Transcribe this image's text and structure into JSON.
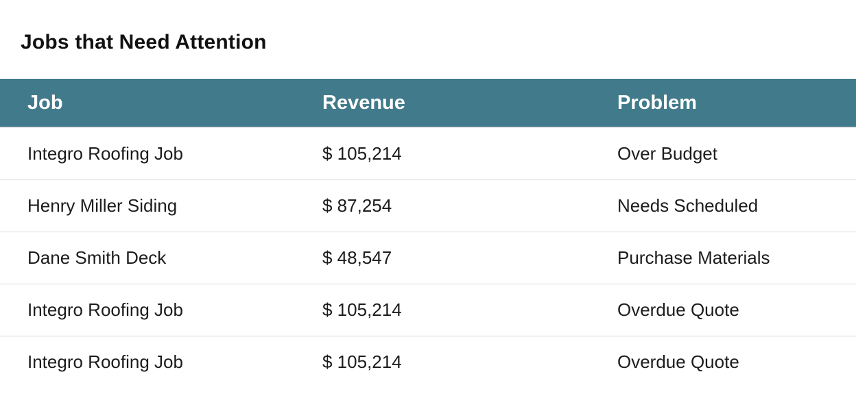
{
  "title": "Jobs that Need Attention",
  "table": {
    "headers": [
      "Job",
      "Revenue",
      "Problem"
    ],
    "rows": [
      {
        "job": "Integro Roofing Job",
        "revenue": "$ 105,214",
        "problem": "Over Budget"
      },
      {
        "job": "Henry Miller Siding",
        "revenue": "$ 87,254",
        "problem": "Needs Scheduled"
      },
      {
        "job": "Dane Smith Deck",
        "revenue": "$ 48,547",
        "problem": "Purchase Materials"
      },
      {
        "job": "Integro Roofing Job",
        "revenue": "$ 105,214",
        "problem": "Overdue Quote"
      },
      {
        "job": "Integro Roofing Job",
        "revenue": "$ 105,214",
        "problem": "Overdue Quote"
      }
    ]
  },
  "colors": {
    "header_bg": "#417a8b",
    "header_text": "#ffffff",
    "row_divider": "#d9d9d9"
  }
}
